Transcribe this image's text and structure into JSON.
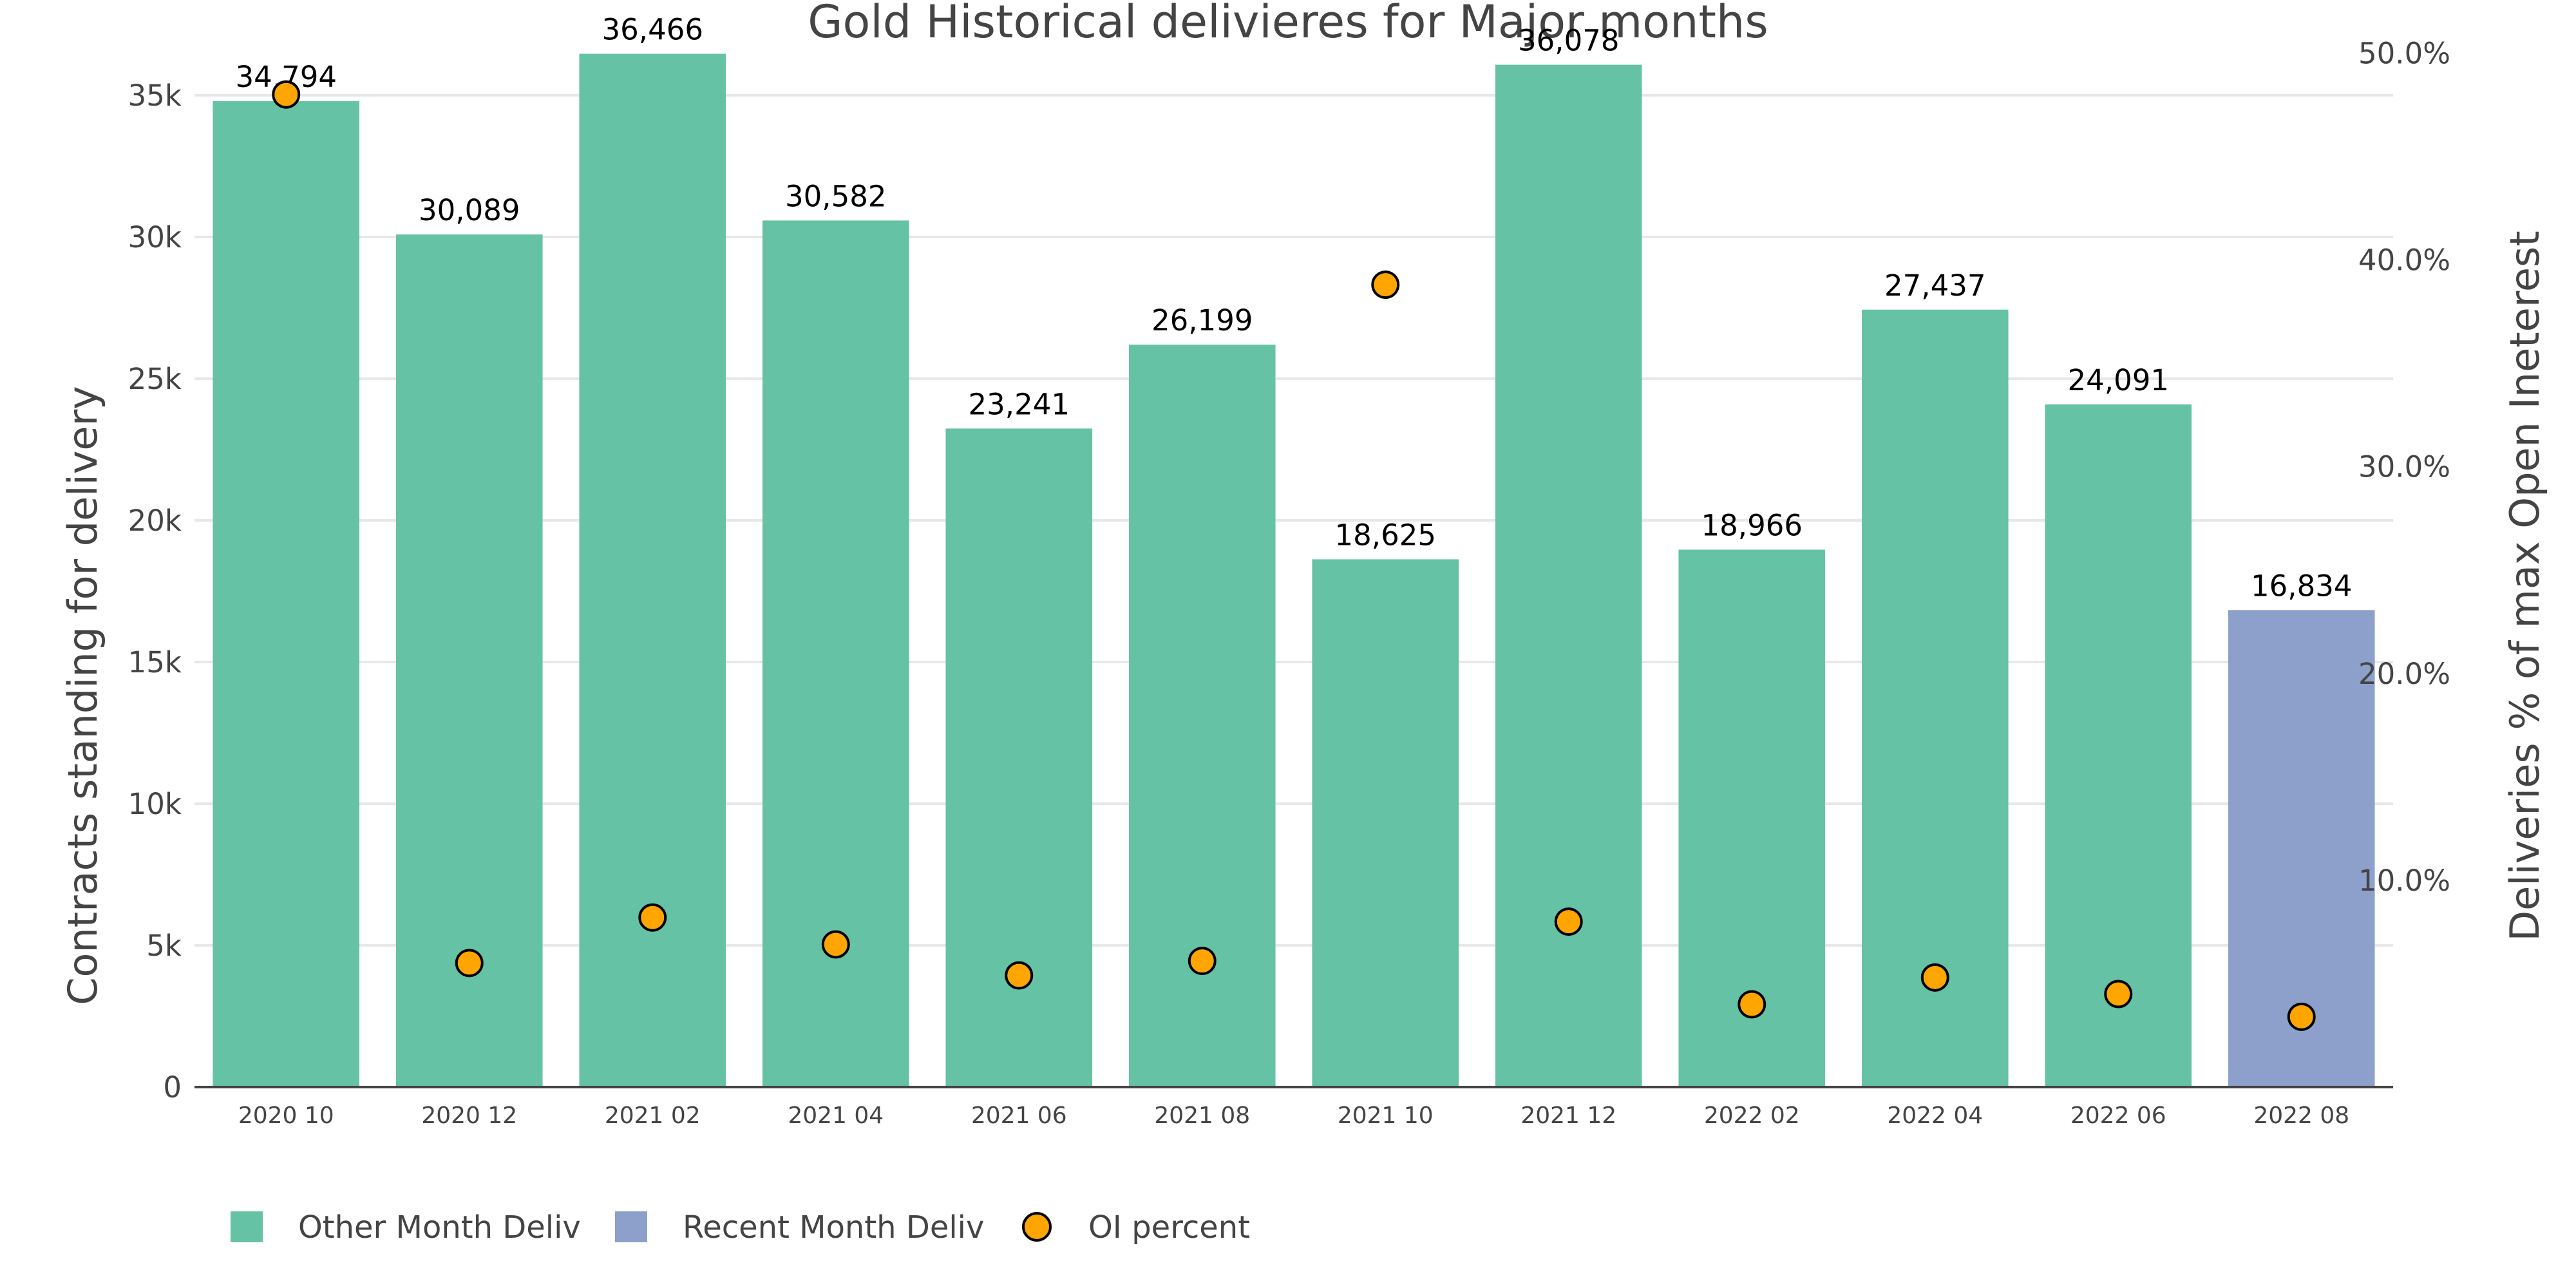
{
  "chart_data": {
    "type": "bar",
    "title": "Gold Historical delivieres for Major months",
    "xlabel": "",
    "ylabel": "Contracts standing for delivery",
    "y2label": "Deliveries % of max Open Ineterest",
    "categories": [
      "2020 10",
      "2020 12",
      "2021 02",
      "2021 04",
      "2021 06",
      "2021 08",
      "2021 10",
      "2021 12",
      "2022 02",
      "2022 04",
      "2022 06",
      "2022 08"
    ],
    "bars": [
      {
        "category": "2020 10",
        "value": 34794,
        "label": "34,794",
        "series": "Other Month Deliv"
      },
      {
        "category": "2020 12",
        "value": 30089,
        "label": "30,089",
        "series": "Other Month Deliv"
      },
      {
        "category": "2021 02",
        "value": 36466,
        "label": "36,466",
        "series": "Other Month Deliv"
      },
      {
        "category": "2021 04",
        "value": 30582,
        "label": "30,582",
        "series": "Other Month Deliv"
      },
      {
        "category": "2021 06",
        "value": 23241,
        "label": "23,241",
        "series": "Other Month Deliv"
      },
      {
        "category": "2021 08",
        "value": 26199,
        "label": "26,199",
        "series": "Other Month Deliv"
      },
      {
        "category": "2021 10",
        "value": 18625,
        "label": "18,625",
        "series": "Other Month Deliv"
      },
      {
        "category": "2021 12",
        "value": 36078,
        "label": "36,078",
        "series": "Other Month Deliv"
      },
      {
        "category": "2022 02",
        "value": 18966,
        "label": "18,966",
        "series": "Other Month Deliv"
      },
      {
        "category": "2022 04",
        "value": 27437,
        "label": "27,437",
        "series": "Other Month Deliv"
      },
      {
        "category": "2022 06",
        "value": 24091,
        "label": "24,091",
        "series": "Other Month Deliv"
      },
      {
        "category": "2022 08",
        "value": 16834,
        "label": "16,834",
        "series": "Recent Month Deliv"
      }
    ],
    "oi_percent": [
      48.0,
      6.0,
      8.2,
      6.9,
      5.4,
      6.1,
      38.8,
      8.0,
      4.0,
      5.3,
      4.5,
      3.4
    ],
    "ylim": [
      0,
      37000
    ],
    "yticks": [
      0,
      5000,
      10000,
      15000,
      20000,
      25000,
      30000,
      35000
    ],
    "ytick_labels": [
      "0",
      "5k",
      "10k",
      "15k",
      "20k",
      "25k",
      "30k",
      "35k"
    ],
    "y2lim": [
      0,
      50.7
    ],
    "y2ticks": [
      10,
      20,
      30,
      40,
      50
    ],
    "y2tick_labels": [
      "10.0%",
      "20.0%",
      "30.0%",
      "40.0%",
      "50.0%"
    ],
    "grid": true,
    "legend_position": "bottom-left",
    "legend": [
      {
        "name": "Other Month Deliv",
        "kind": "bar",
        "color": "#66c2a5"
      },
      {
        "name": "Recent Month Deliv",
        "kind": "bar",
        "color": "#8da0cb"
      },
      {
        "name": "OI percent",
        "kind": "marker",
        "color": "#ffa500"
      }
    ],
    "colors": {
      "Other Month Deliv": "#66c2a5",
      "Recent Month Deliv": "#8da0cb",
      "OI percent": "#ffa500"
    }
  }
}
